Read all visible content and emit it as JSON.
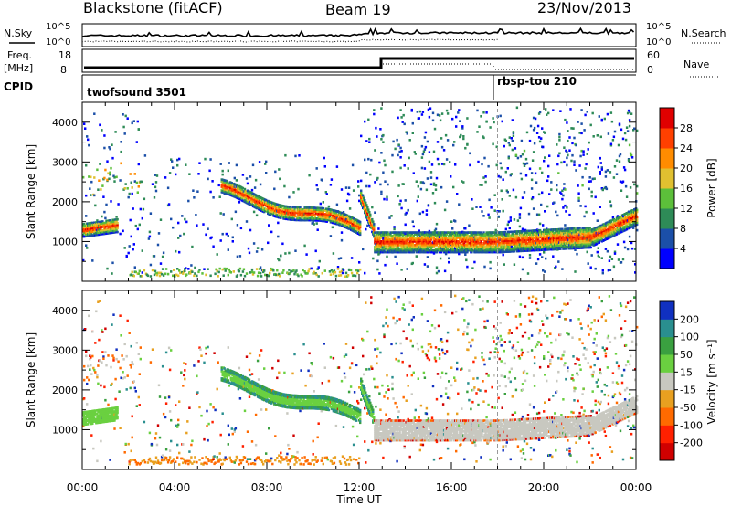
{
  "header": {
    "title": "Blackstone (fitACF)",
    "beam": "Beam 19",
    "date": "23/Nov/2013"
  },
  "panels": {
    "nsky_label": "N.Sky",
    "nsearch_label": "N.Search",
    "count_ticks": [
      "10^5",
      "10^0"
    ],
    "freq_label_line1": "Freq.",
    "freq_label_line2": "[MHz]",
    "freq_ticks": [
      "18",
      "8"
    ],
    "nave_label": "Nave",
    "nave_ticks": [
      "60",
      "0"
    ],
    "cpid_label": "CPID",
    "cpid_segments": [
      {
        "name": "twofsound 3501",
        "start_hour": 0,
        "end_hour": 18
      },
      {
        "name": "rbsp-tou 210",
        "start_hour": 18,
        "end_hour": 24
      }
    ]
  },
  "chart_data": [
    {
      "type": "heatmap",
      "title": "Power",
      "ylabel": "Slant Range [km]",
      "xlabel": "Time UT",
      "x_range_hours": [
        0,
        24
      ],
      "ylim": [
        0,
        4500
      ],
      "y_ticks": [
        "1000",
        "2000",
        "3000",
        "4000"
      ],
      "colorbar": {
        "label": "Power [dB]",
        "ticks": [
          "4",
          "8",
          "12",
          "16",
          "20",
          "24",
          "28"
        ],
        "colors": [
          "#0000ff",
          "#1b4fa8",
          "#2e8b57",
          "#5cbf3a",
          "#e0c030",
          "#ff8c00",
          "#ff4000",
          "#e00000"
        ]
      }
    },
    {
      "type": "heatmap",
      "title": "Velocity",
      "ylabel": "Slant Range [km]",
      "xlabel": "Time UT",
      "x_range_hours": [
        0,
        24
      ],
      "ylim": [
        0,
        4500
      ],
      "y_ticks": [
        "1000",
        "2000",
        "3000",
        "4000"
      ],
      "colorbar": {
        "label": "Velocity [m s⁻¹]",
        "ticks": [
          "200",
          "100",
          "50",
          "15",
          "-15",
          "-50",
          "-100",
          "-200"
        ],
        "colors": [
          "#1030c0",
          "#2a8f8f",
          "#3aa040",
          "#6ad040",
          "#c8c8c0",
          "#e8a020",
          "#ff6a00",
          "#ff2000",
          "#d00000"
        ]
      }
    }
  ],
  "x_axis": {
    "ticks": [
      "00:00",
      "04:00",
      "08:00",
      "12:00",
      "16:00",
      "20:00",
      "00:00"
    ],
    "label": "Time UT"
  }
}
